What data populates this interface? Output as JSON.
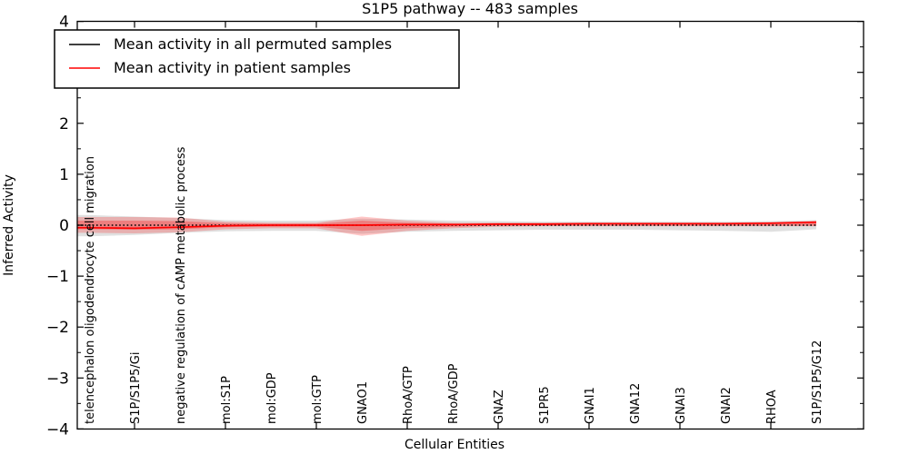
{
  "chart_data": {
    "type": "line",
    "title": "S1P5 pathway -- 483 samples",
    "xlabel": "Cellular Entities",
    "ylabel": "Inferred Activity",
    "ylim": [
      -4,
      4
    ],
    "y_major_ticks": [
      -4,
      -3,
      -2,
      -1,
      0,
      1,
      2,
      3,
      4
    ],
    "y_minor_step": 0.5,
    "grid": false,
    "legend_position": "upper-left",
    "categories": [
      "telencephalon oligodendrocyte cell migration",
      "S1P/S1P5/Gi",
      "negative regulation of cAMP metabolic process",
      "mol:S1P",
      "mol:GDP",
      "mol:GTP",
      "GNAO1",
      "RhoA/GTP",
      "RhoA/GDP",
      "GNAZ",
      "S1PR5",
      "GNAI1",
      "GNA12",
      "GNAI3",
      "GNAI2",
      "RHOA",
      "S1P/S1P5/G12"
    ],
    "x_major_tick_indices": [
      1,
      3,
      5,
      7,
      9,
      11,
      13,
      15
    ],
    "series": [
      {
        "name": "Mean activity in all permuted samples",
        "color": "#000000",
        "style": "dotted",
        "values": [
          0,
          0,
          0,
          0,
          0,
          0,
          0,
          0,
          0,
          0,
          0,
          0,
          0,
          0,
          0,
          0,
          0
        ]
      },
      {
        "name": "Mean activity in patient samples",
        "color": "#ff0000",
        "style": "solid",
        "values": [
          -0.05,
          -0.06,
          -0.04,
          -0.01,
          0,
          0,
          0,
          0.01,
          0.01,
          0.02,
          0.02,
          0.03,
          0.03,
          0.03,
          0.03,
          0.04,
          0.06
        ]
      }
    ],
    "bands": [
      {
        "name": "permuted-sample-range",
        "color": "#000000",
        "opacity": 0.12,
        "upper": [
          0.2,
          0.17,
          0.14,
          0.1,
          0.09,
          0.09,
          0.13,
          0.11,
          0.09,
          0.08,
          0.07,
          0.07,
          0.07,
          0.07,
          0.07,
          0.08,
          0.1
        ],
        "lower": [
          -0.22,
          -0.19,
          -0.15,
          -0.12,
          -0.11,
          -0.11,
          -0.17,
          -0.13,
          -0.11,
          -0.1,
          -0.09,
          -0.09,
          -0.09,
          -0.1,
          -0.11,
          -0.13,
          -0.08
        ]
      },
      {
        "name": "patient-sample-range-outer",
        "color": "#ff0000",
        "opacity": 0.22,
        "upper": [
          0.16,
          0.16,
          0.15,
          0.07,
          0.05,
          0.05,
          0.17,
          0.09,
          0.05,
          0.05,
          0.05,
          0.05,
          0.05,
          0.05,
          0.05,
          0.06,
          0.08
        ],
        "lower": [
          -0.15,
          -0.16,
          -0.14,
          -0.08,
          -0.06,
          -0.06,
          -0.21,
          -0.11,
          -0.06,
          -0.03,
          -0.02,
          -0.02,
          -0.02,
          -0.02,
          -0.02,
          -0.02,
          -0.02
        ]
      },
      {
        "name": "patient-sample-range-inner",
        "color": "#ff0000",
        "opacity": 0.28,
        "upper": [
          0.09,
          0.09,
          0.08,
          0.04,
          0.03,
          0.03,
          0.09,
          0.05,
          0.03,
          0.04,
          0.04,
          0.04,
          0.04,
          0.04,
          0.04,
          0.05,
          0.07
        ],
        "lower": [
          -0.08,
          -0.09,
          -0.08,
          -0.04,
          -0.03,
          -0.03,
          -0.11,
          -0.06,
          -0.03,
          -0.01,
          -0.01,
          -0.01,
          -0.01,
          -0.01,
          -0.01,
          -0.01,
          -0.01
        ]
      }
    ]
  }
}
